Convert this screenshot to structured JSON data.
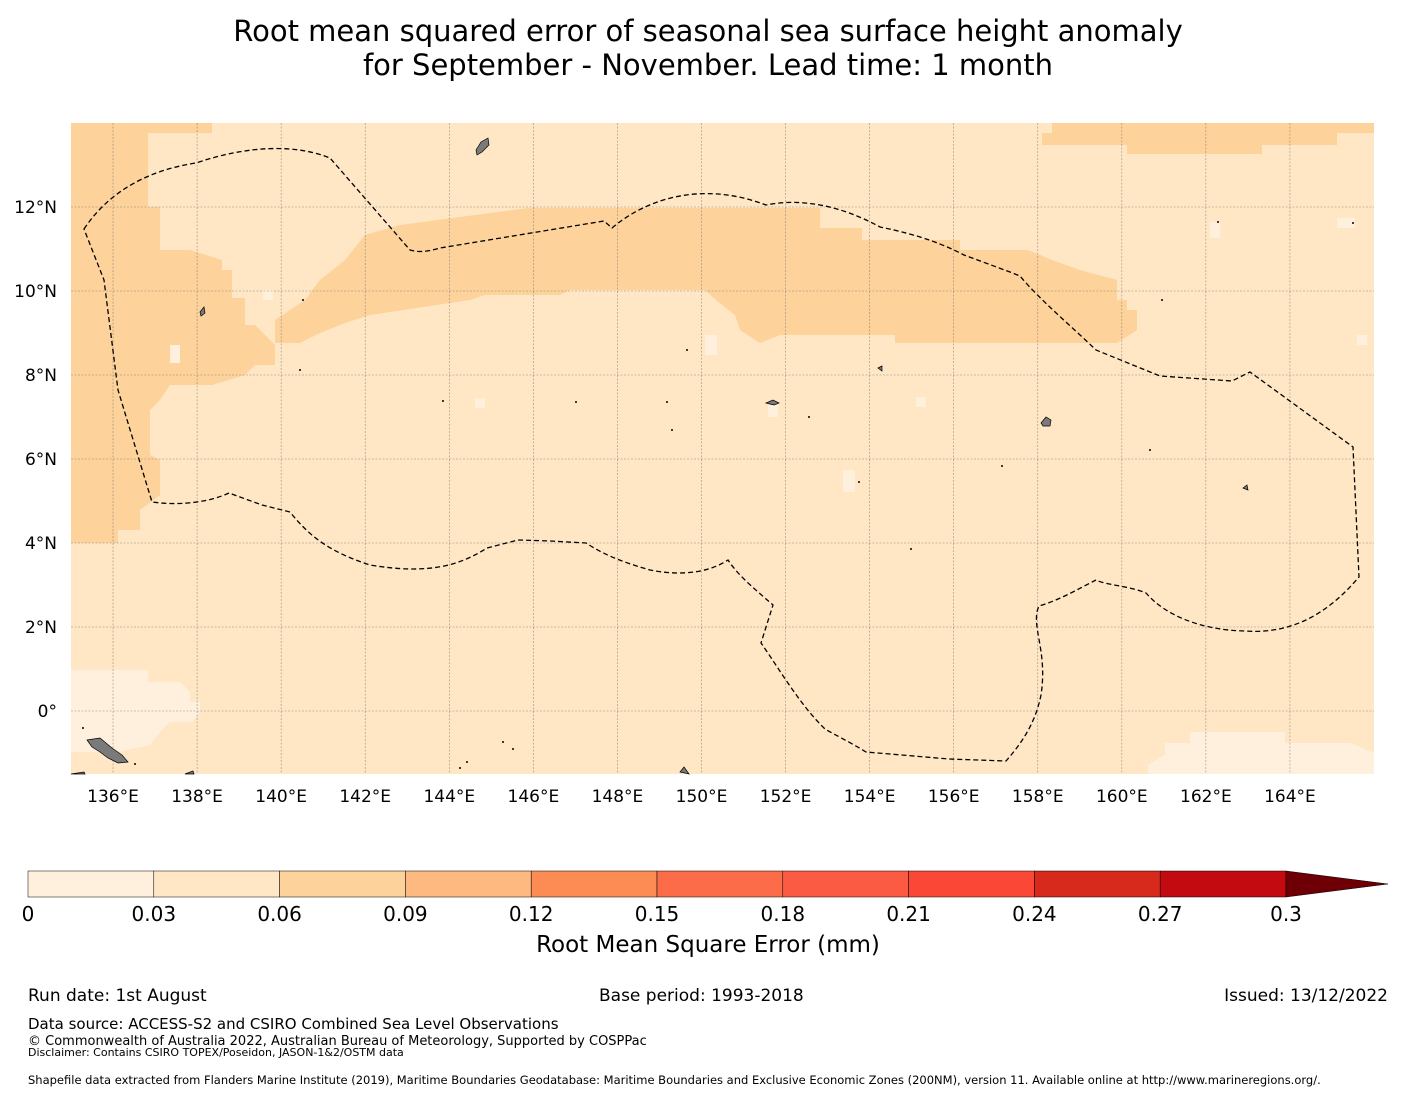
{
  "title": {
    "line1": "Root mean squared error of seasonal sea surface height anomaly",
    "line2": "for September - November. Lead time: 1 month"
  },
  "map": {
    "x_ticks": [
      "136°E",
      "138°E",
      "140°E",
      "142°E",
      "144°E",
      "146°E",
      "148°E",
      "150°E",
      "152°E",
      "154°E",
      "156°E",
      "158°E",
      "160°E",
      "162°E",
      "164°E"
    ],
    "y_ticks": [
      "12°N",
      "10°N",
      "8°N",
      "6°N",
      "4°N",
      "2°N",
      "0°"
    ],
    "lon_range": [
      135,
      166
    ],
    "lat_range": [
      -1.5,
      14
    ]
  },
  "colorbar": {
    "ticks": [
      "0",
      "0.03",
      "0.06",
      "0.09",
      "0.12",
      "0.15",
      "0.18",
      "0.21",
      "0.24",
      "0.27",
      "0.3"
    ],
    "colors": [
      "#fff0de",
      "#ffe7c5",
      "#fdd29b",
      "#fdb97f",
      "#fc8c54",
      "#fc6c48",
      "#fb5a43",
      "#fa4736",
      "#d8291d",
      "#c30a10",
      "#a50106"
    ],
    "extend_color": "#6e0005",
    "label": "Root Mean Square Error (mm)"
  },
  "footer": {
    "run_date": "Run date: 1st August",
    "base_period": "Base period: 1993-2018",
    "issued": "Issued: 13/12/2022",
    "data_source": "Data source: ACCESS-S2 and CSIRO Combined Sea Level Observations",
    "copyright": "© Commonwealth of Australia 2022, Australian Bureau of Meteorology, Supported by COSPPac",
    "disclaimer": "Disclaimer: Contains CSIRO TOPEX/Poseidon, JASON-1&2/OSTM data",
    "shapefile": "Shapefile data extracted from Flanders Marine Institute (2019), Maritime Boundaries Geodatabase: Maritime Boundaries and Exclusive Economic Zones (200NM), version 11. Available online at http://www.marineregions.org/."
  }
}
